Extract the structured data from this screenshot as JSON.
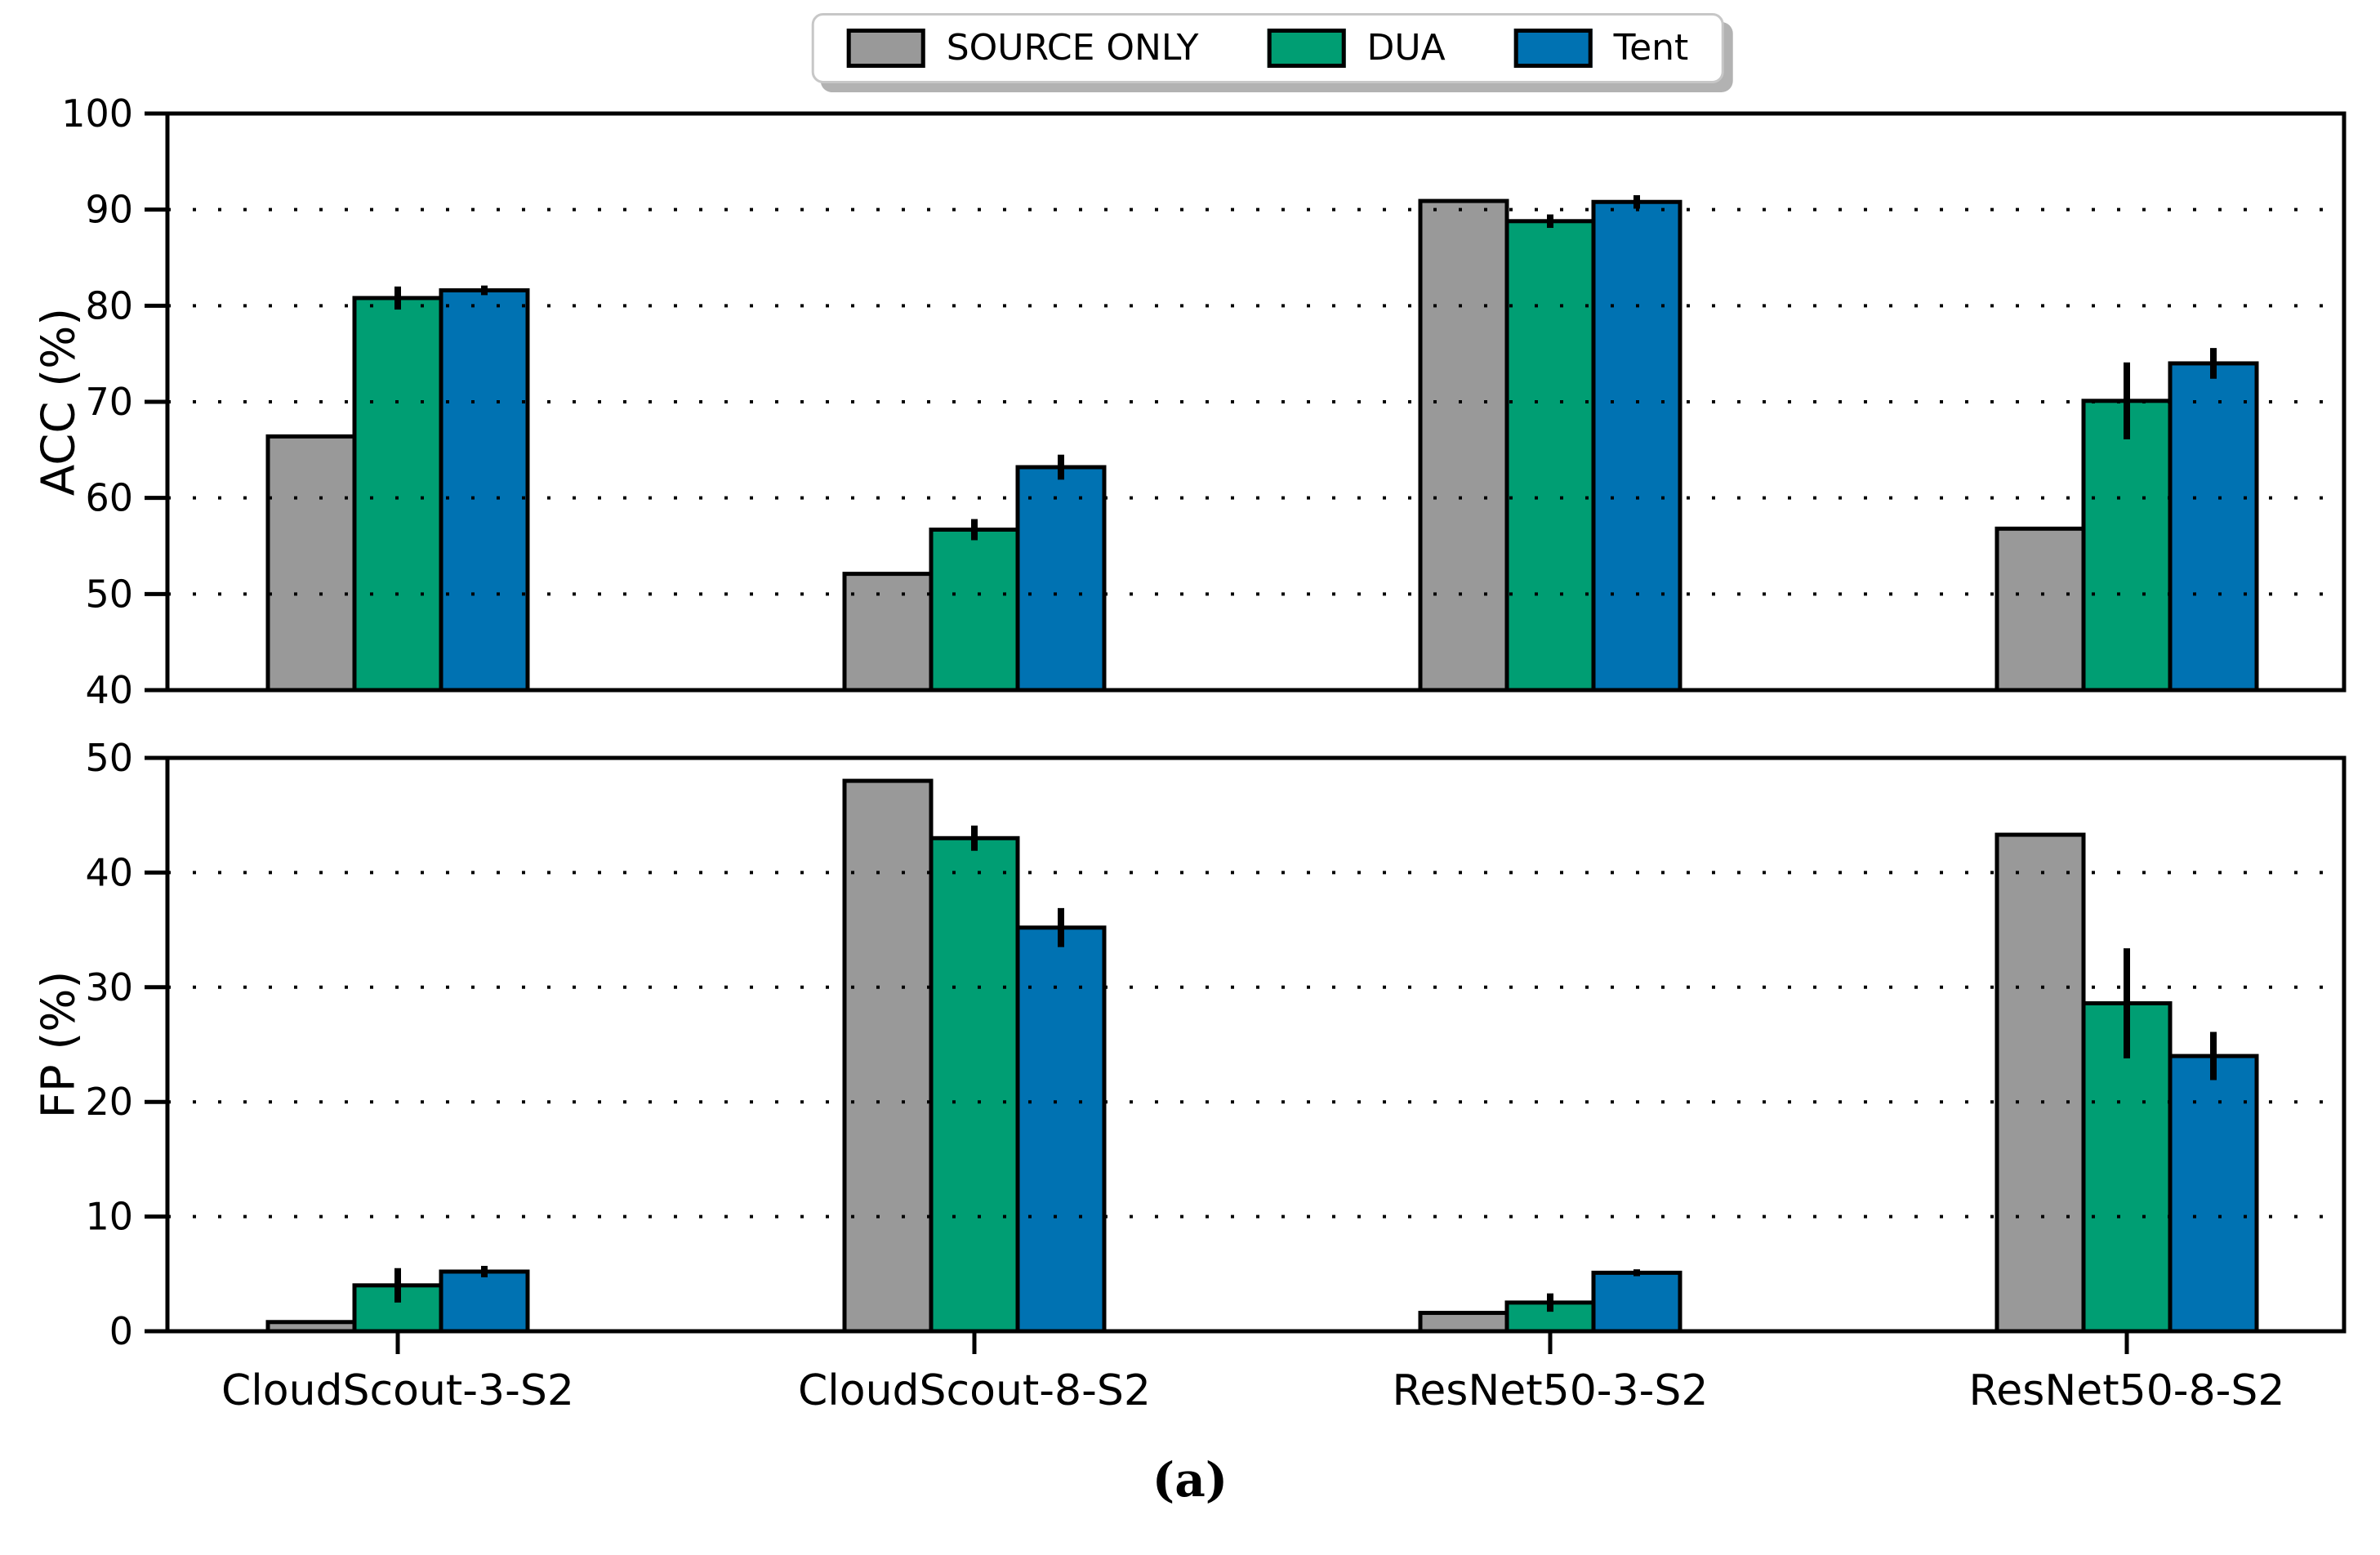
{
  "figure": {
    "caption": "(a)",
    "background": "#ffffff"
  },
  "legend": {
    "items": [
      {
        "label": "SOURCE ONLY",
        "color": "#999999"
      },
      {
        "label": "DUA",
        "color": "#009E73"
      },
      {
        "label": "Tent",
        "color": "#0072B2"
      }
    ]
  },
  "chart_data": [
    {
      "type": "bar",
      "panel": "top",
      "ylabel": "ACC (%)",
      "xlabel": "",
      "ylim": [
        40,
        100
      ],
      "yticks": [
        40,
        50,
        60,
        70,
        80,
        90,
        100
      ],
      "grid_yticks": [
        50,
        60,
        70,
        80,
        90
      ],
      "grid": "dotted",
      "legend_position": "above-figure-center",
      "show_xticklabels": false,
      "categories": [
        "CloudScout-3-S2",
        "CloudScout-8-S2",
        "ResNet50-3-S2",
        "ResNet50-8-S2"
      ],
      "series": [
        {
          "name": "SOURCE ONLY",
          "color": "#999999",
          "values": [
            66.4,
            52.1,
            90.9,
            56.8
          ],
          "errors": [
            0,
            0,
            0,
            0
          ]
        },
        {
          "name": "DUA",
          "color": "#009E73",
          "values": [
            80.8,
            56.7,
            88.8,
            70.1
          ],
          "errors": [
            1.2,
            1.1,
            0.7,
            4.0
          ]
        },
        {
          "name": "Tent",
          "color": "#0072B2",
          "values": [
            81.6,
            63.2,
            90.8,
            74.0
          ],
          "errors": [
            0.5,
            1.3,
            0.7,
            1.6
          ]
        }
      ]
    },
    {
      "type": "bar",
      "panel": "bottom",
      "ylabel": "FP (%)",
      "xlabel": "",
      "ylim": [
        0,
        50
      ],
      "yticks": [
        0,
        10,
        20,
        30,
        40,
        50
      ],
      "grid_yticks": [
        10,
        20,
        30,
        40
      ],
      "grid": "dotted",
      "show_xticklabels": true,
      "categories": [
        "CloudScout-3-S2",
        "CloudScout-8-S2",
        "ResNet50-3-S2",
        "ResNet50-8-S2"
      ],
      "series": [
        {
          "name": "SOURCE ONLY",
          "color": "#999999",
          "values": [
            0.8,
            48.0,
            1.6,
            43.3
          ],
          "errors": [
            0,
            0,
            0,
            0
          ]
        },
        {
          "name": "DUA",
          "color": "#009E73",
          "values": [
            4.0,
            43.0,
            2.5,
            28.6
          ],
          "errors": [
            1.5,
            1.1,
            0.8,
            4.8
          ]
        },
        {
          "name": "Tent",
          "color": "#0072B2",
          "values": [
            5.2,
            35.2,
            5.1,
            24.0
          ],
          "errors": [
            0.5,
            1.7,
            0.3,
            2.1
          ]
        }
      ]
    }
  ]
}
